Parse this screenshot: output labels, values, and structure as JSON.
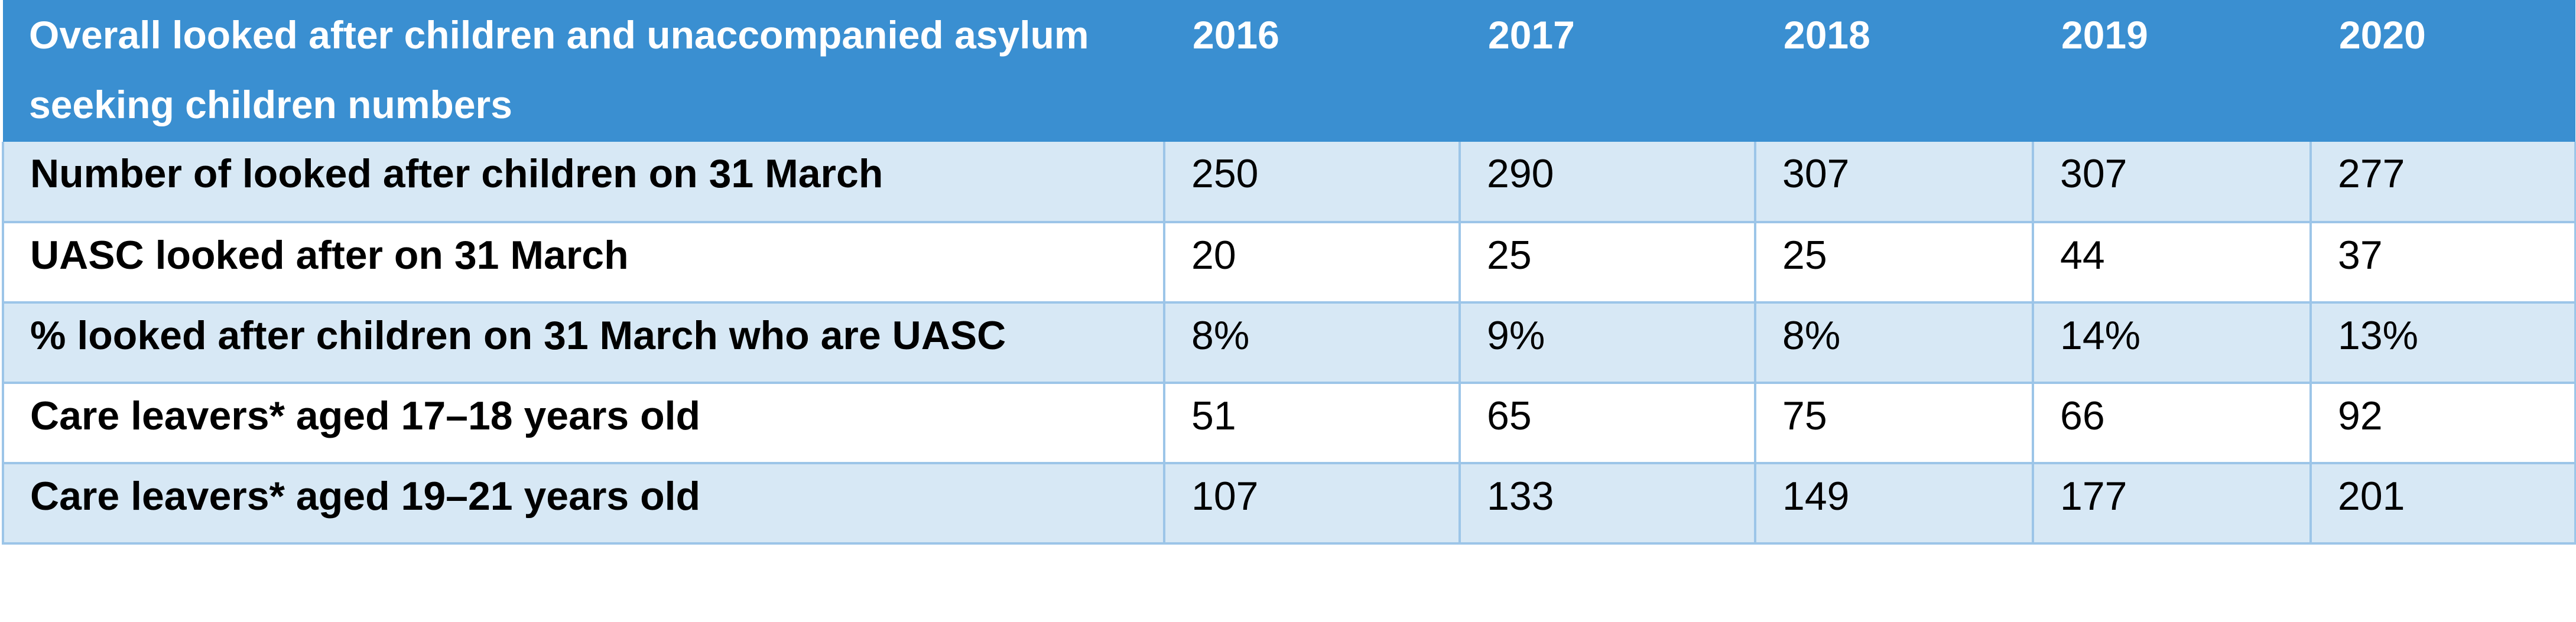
{
  "table": {
    "header": {
      "label": "Overall looked after children and unaccompanied asylum seeking children numbers",
      "years": [
        "2016",
        "2017",
        "2018",
        "2019",
        "2020"
      ]
    },
    "rows": [
      {
        "label": "Number of looked after children on 31 March",
        "values": [
          "250",
          "290",
          "307",
          "307",
          "277"
        ]
      },
      {
        "label": "UASC looked after on 31 March",
        "values": [
          "20",
          "25",
          "25",
          "44",
          "37"
        ]
      },
      {
        "label": "% looked after children on 31 March who are UASC",
        "values": [
          "8%",
          "9%",
          "8%",
          "14%",
          "13%"
        ]
      },
      {
        "label": "Care leavers* aged 17–18 years old",
        "values": [
          "51",
          "65",
          "75",
          "66",
          "92"
        ]
      },
      {
        "label": "Care leavers* aged 19–21 years old",
        "values": [
          "107",
          "133",
          "149",
          "177",
          "201"
        ]
      }
    ]
  },
  "colors": {
    "header_background": "#3a8fd1",
    "shaded_row": "#d7e8f5",
    "border": "#9cc5e8"
  }
}
